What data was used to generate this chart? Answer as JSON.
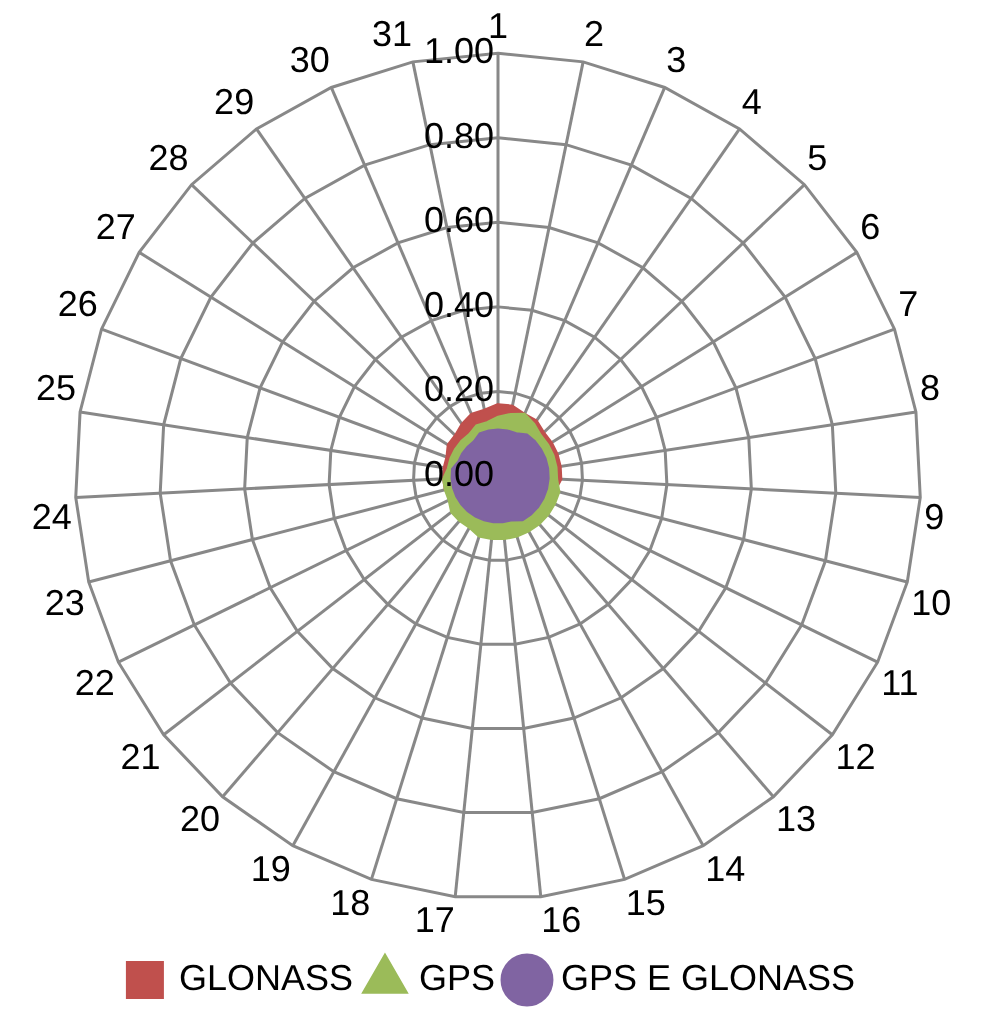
{
  "chart_data": {
    "type": "radar",
    "categories": [
      "1",
      "2",
      "3",
      "4",
      "5",
      "6",
      "7",
      "8",
      "9",
      "10",
      "11",
      "12",
      "13",
      "14",
      "15",
      "16",
      "17",
      "18",
      "19",
      "20",
      "21",
      "22",
      "23",
      "24",
      "25",
      "26",
      "27",
      "28",
      "29",
      "30",
      "31"
    ],
    "ylim": [
      0,
      1
    ],
    "yticks": [
      {
        "value": 0,
        "label": "0.00"
      },
      {
        "value": 0.2,
        "label": "0.20"
      },
      {
        "value": 0.4,
        "label": "0.40"
      },
      {
        "value": 0.6,
        "label": "0.60"
      },
      {
        "value": 0.8,
        "label": "0.80"
      },
      {
        "value": 1,
        "label": "1.00"
      }
    ],
    "grid": true,
    "legend": "bottom",
    "series": [
      {
        "name": "GLONASS",
        "color": "#c0504d",
        "marker": "square",
        "values": [
          0.17,
          0.17,
          0.16,
          0.16,
          0.15,
          0.15,
          0.15,
          0.15,
          0.15,
          0.14,
          0.14,
          0.13,
          0.13,
          0.12,
          0.12,
          0.12,
          0.11,
          0.12,
          0.12,
          0.12,
          0.12,
          0.12,
          0.13,
          0.13,
          0.13,
          0.13,
          0.14,
          0.14,
          0.15,
          0.16,
          0.16
        ]
      },
      {
        "name": "GPS",
        "color": "#9bbb59",
        "marker": "triangle",
        "values": [
          0.14,
          0.15,
          0.16,
          0.15,
          0.14,
          0.14,
          0.14,
          0.14,
          0.14,
          0.15,
          0.15,
          0.15,
          0.15,
          0.15,
          0.15,
          0.15,
          0.15,
          0.15,
          0.14,
          0.14,
          0.14,
          0.13,
          0.13,
          0.13,
          0.12,
          0.12,
          0.12,
          0.12,
          0.12,
          0.13,
          0.13
        ]
      },
      {
        "name": "GPS E GLONASS",
        "color": "#8064a2",
        "marker": "circle",
        "values": [
          0.11,
          0.11,
          0.11,
          0.12,
          0.12,
          0.12,
          0.12,
          0.12,
          0.12,
          0.12,
          0.12,
          0.12,
          0.12,
          0.12,
          0.11,
          0.11,
          0.11,
          0.11,
          0.11,
          0.11,
          0.11,
          0.11,
          0.11,
          0.11,
          0.11,
          0.1,
          0.1,
          0.1,
          0.1,
          0.11,
          0.11
        ]
      }
    ]
  }
}
